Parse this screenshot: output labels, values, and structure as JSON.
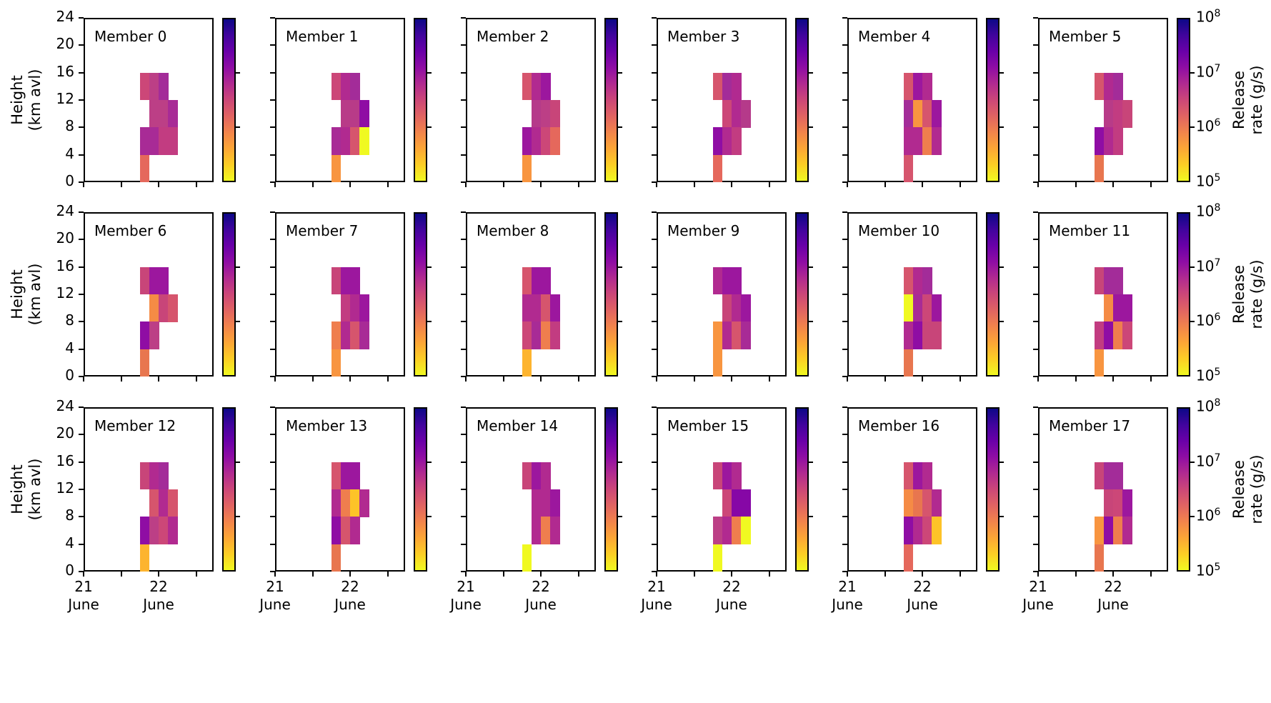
{
  "figure": {
    "kind": "ensemble release-rate inversion heatmaps",
    "rows": 3,
    "cols": 6
  },
  "chart_data": {
    "type": "heatmap",
    "grid": {
      "rows": 3,
      "cols": 6
    },
    "ylabel_lines": [
      "Height",
      "(km avl)"
    ],
    "y_tick_labels": [
      "0",
      "4",
      "8",
      "12",
      "16",
      "20",
      "24"
    ],
    "y_range_km": [
      0,
      24
    ],
    "x_tick_labels": [
      [
        "21",
        "June"
      ],
      [
        "22",
        "June"
      ]
    ],
    "x_range": [
      "21 June 00:00",
      "22 June ~18:00"
    ],
    "time_slots": [
      "21 June 18:00-21:00",
      "21 June 21:00-24:00",
      "22 June 00:00-03:00",
      "22 June 03:00-06:00"
    ],
    "colorbar": {
      "label_lines": [
        "Release",
        "rate (g/s)"
      ],
      "tick_labels": [
        "10^5",
        "10^6",
        "10^7",
        "10^8"
      ],
      "scale": "log",
      "colormap": "plasma reversed (yellow=1e5 bottom, dark indigo=1e8 top)",
      "gradient_stops_top_to_bottom": [
        "#0d0887",
        "#41049d",
        "#6a00a8",
        "#8f0da4",
        "#b12a90",
        "#cc4778",
        "#e16462",
        "#f2844b",
        "#fca636",
        "#fcce25",
        "#f0f921"
      ]
    },
    "color_to_value_gs_estimate": {
      "#f0f921": "1.0e5",
      "#fdc328": "1.9e5",
      "#fdb42f": "2.7e5",
      "#f89540": "4.4e5",
      "#f58b45": "5.2e5",
      "#ef7e4e": "6.6e5",
      "#e8764f": "7.8e5",
      "#e5685c": "1.0e6",
      "#d6556d": "1.4e6",
      "#cc4778": "2.2e6",
      "#c84579": "2.6e6",
      "#c23c81": "3.2e6",
      "#bc3f86": "3.8e6",
      "#b83b88": "4.3e6",
      "#b53a8a": "4.7e6",
      "#b12a90": "6.0e6",
      "#a82b96": "7.5e6",
      "#a32c99": "8.5e6",
      "#9c179e": "1.2e7",
      "#8f0da4": "1.8e7",
      "#8607a6": "2.4e7"
    },
    "members": [
      {
        "label": "Member 0",
        "bands": [
          {
            "km": [
              12,
              16
            ],
            "start_slot": 0,
            "colors": [
              "#cc4778",
              "#bc3f86",
              "#a32c99"
            ]
          },
          {
            "km": [
              8,
              12
            ],
            "start_slot": 1,
            "colors": [
              "#bc3f86",
              "#bc3f86",
              "#a82b96"
            ]
          },
          {
            "km": [
              4,
              8
            ],
            "start_slot": 0,
            "colors": [
              "#a82b96",
              "#a82b96",
              "#c23c81",
              "#c23c81"
            ]
          },
          {
            "km": [
              0,
              4
            ],
            "start_slot": 0,
            "colors": [
              "#e5685c"
            ]
          }
        ]
      },
      {
        "label": "Member 1",
        "bands": [
          {
            "km": [
              12,
              16
            ],
            "start_slot": 0,
            "colors": [
              "#cc4778",
              "#b12a90",
              "#a32c99"
            ]
          },
          {
            "km": [
              8,
              12
            ],
            "start_slot": 1,
            "colors": [
              "#b83b88",
              "#b83b88",
              "#8f0da4"
            ]
          },
          {
            "km": [
              4,
              8
            ],
            "start_slot": 0,
            "colors": [
              "#a82b96",
              "#b12a90",
              "#d6556d",
              "#f0f921"
            ]
          },
          {
            "km": [
              0,
              4
            ],
            "start_slot": 0,
            "colors": [
              "#f89540"
            ]
          }
        ]
      },
      {
        "label": "Member 2",
        "bands": [
          {
            "km": [
              12,
              16
            ],
            "start_slot": 0,
            "colors": [
              "#d6556d",
              "#b12a90",
              "#9c179e"
            ]
          },
          {
            "km": [
              8,
              12
            ],
            "start_slot": 1,
            "colors": [
              "#b53a8a",
              "#bc3f86",
              "#c84579"
            ]
          },
          {
            "km": [
              4,
              8
            ],
            "start_slot": 0,
            "colors": [
              "#9c179e",
              "#b12a90",
              "#cc4778",
              "#e5685c"
            ]
          },
          {
            "km": [
              0,
              4
            ],
            "start_slot": 0,
            "colors": [
              "#f89540"
            ]
          }
        ]
      },
      {
        "label": "Member 3",
        "bands": [
          {
            "km": [
              12,
              16
            ],
            "start_slot": 0,
            "colors": [
              "#d6556d",
              "#a32c99",
              "#b12a90"
            ]
          },
          {
            "km": [
              8,
              12
            ],
            "start_slot": 1,
            "colors": [
              "#cc4778",
              "#b12a90",
              "#b53a8a"
            ]
          },
          {
            "km": [
              4,
              8
            ],
            "start_slot": 0,
            "colors": [
              "#8f0da4",
              "#b12a90",
              "#c23c81"
            ]
          },
          {
            "km": [
              0,
              4
            ],
            "start_slot": 0,
            "colors": [
              "#e5685c"
            ]
          }
        ]
      },
      {
        "label": "Member 4",
        "bands": [
          {
            "km": [
              12,
              16
            ],
            "start_slot": 0,
            "colors": [
              "#d6556d",
              "#9c179e",
              "#b12a90"
            ]
          },
          {
            "km": [
              8,
              12
            ],
            "start_slot": 0,
            "colors": [
              "#a32c99",
              "#f89540",
              "#d6556d",
              "#9c179e"
            ]
          },
          {
            "km": [
              4,
              8
            ],
            "start_slot": 0,
            "colors": [
              "#b12a90",
              "#b12a90",
              "#ef7e4e",
              "#b12a90"
            ]
          },
          {
            "km": [
              0,
              4
            ],
            "start_slot": 0,
            "colors": [
              "#d6556d"
            ]
          }
        ]
      },
      {
        "label": "Member 5",
        "bands": [
          {
            "km": [
              12,
              16
            ],
            "start_slot": 0,
            "colors": [
              "#d6556d",
              "#b12a90",
              "#a32c99"
            ]
          },
          {
            "km": [
              8,
              12
            ],
            "start_slot": 1,
            "colors": [
              "#b83b88",
              "#c23c81",
              "#c84579"
            ]
          },
          {
            "km": [
              4,
              8
            ],
            "start_slot": 0,
            "colors": [
              "#8f0da4",
              "#b12a90",
              "#c23c81"
            ]
          },
          {
            "km": [
              0,
              4
            ],
            "start_slot": 0,
            "colors": [
              "#e8764f"
            ]
          }
        ]
      },
      {
        "label": "Member 6",
        "bands": [
          {
            "km": [
              12,
              16
            ],
            "start_slot": 0,
            "colors": [
              "#c84579",
              "#9c179e",
              "#9c179e"
            ]
          },
          {
            "km": [
              8,
              12
            ],
            "start_slot": 1,
            "colors": [
              "#f58b45",
              "#c84579",
              "#d6556d"
            ]
          },
          {
            "km": [
              4,
              8
            ],
            "start_slot": 0,
            "colors": [
              "#8f0da4",
              "#bc3f86"
            ]
          },
          {
            "km": [
              0,
              4
            ],
            "start_slot": 0,
            "colors": [
              "#e8764f"
            ]
          }
        ]
      },
      {
        "label": "Member 7",
        "bands": [
          {
            "km": [
              12,
              16
            ],
            "start_slot": 0,
            "colors": [
              "#c84579",
              "#9c179e",
              "#9c179e"
            ]
          },
          {
            "km": [
              8,
              12
            ],
            "start_slot": 1,
            "colors": [
              "#c23c81",
              "#b12a90",
              "#9c179e"
            ]
          },
          {
            "km": [
              4,
              8
            ],
            "start_slot": 0,
            "colors": [
              "#ef7e4e",
              "#b12a90",
              "#d6556d",
              "#a82b96"
            ]
          },
          {
            "km": [
              0,
              4
            ],
            "start_slot": 0,
            "colors": [
              "#f89540"
            ]
          }
        ]
      },
      {
        "label": "Member 8",
        "bands": [
          {
            "km": [
              12,
              16
            ],
            "start_slot": 0,
            "colors": [
              "#d6556d",
              "#9c179e",
              "#9c179e"
            ]
          },
          {
            "km": [
              8,
              12
            ],
            "start_slot": 0,
            "colors": [
              "#b12a90",
              "#b12a90",
              "#d6556d",
              "#9c179e"
            ]
          },
          {
            "km": [
              4,
              8
            ],
            "start_slot": 0,
            "colors": [
              "#cc4778",
              "#a82b96",
              "#ef7e4e",
              "#c23c81"
            ]
          },
          {
            "km": [
              0,
              4
            ],
            "start_slot": 0,
            "colors": [
              "#fdb42f"
            ]
          }
        ]
      },
      {
        "label": "Member 9",
        "bands": [
          {
            "km": [
              12,
              16
            ],
            "start_slot": 0,
            "colors": [
              "#b12a90",
              "#9c179e",
              "#9c179e"
            ]
          },
          {
            "km": [
              8,
              12
            ],
            "start_slot": 1,
            "colors": [
              "#c84579",
              "#b12a90",
              "#9c179e"
            ]
          },
          {
            "km": [
              4,
              8
            ],
            "start_slot": 0,
            "colors": [
              "#f89540",
              "#b12a90",
              "#d6556d",
              "#a82b96"
            ]
          },
          {
            "km": [
              0,
              4
            ],
            "start_slot": 0,
            "colors": [
              "#f89540"
            ]
          }
        ]
      },
      {
        "label": "Member 10",
        "bands": [
          {
            "km": [
              12,
              16
            ],
            "start_slot": 0,
            "colors": [
              "#d6556d",
              "#b12a90",
              "#a32c99"
            ]
          },
          {
            "km": [
              8,
              12
            ],
            "start_slot": 0,
            "colors": [
              "#f0f921",
              "#a82b96",
              "#cc4778",
              "#9c179e"
            ]
          },
          {
            "km": [
              4,
              8
            ],
            "start_slot": 0,
            "colors": [
              "#b12a90",
              "#8f0da4",
              "#c84579",
              "#c84579"
            ]
          },
          {
            "km": [
              0,
              4
            ],
            "start_slot": 0,
            "colors": [
              "#e8764f"
            ]
          }
        ]
      },
      {
        "label": "Member 11",
        "bands": [
          {
            "km": [
              12,
              16
            ],
            "start_slot": 0,
            "colors": [
              "#c84579",
              "#a32c99",
              "#a32c99"
            ]
          },
          {
            "km": [
              8,
              12
            ],
            "start_slot": 1,
            "colors": [
              "#f58b45",
              "#9c179e",
              "#9c179e"
            ]
          },
          {
            "km": [
              4,
              8
            ],
            "start_slot": 0,
            "colors": [
              "#c23c81",
              "#8f0da4",
              "#ef7e4e",
              "#cc4778"
            ]
          },
          {
            "km": [
              0,
              4
            ],
            "start_slot": 0,
            "colors": [
              "#f89540"
            ]
          }
        ]
      },
      {
        "label": "Member 12",
        "bands": [
          {
            "km": [
              12,
              16
            ],
            "start_slot": 0,
            "colors": [
              "#c84579",
              "#b12a90",
              "#a32c99"
            ]
          },
          {
            "km": [
              8,
              12
            ],
            "start_slot": 1,
            "colors": [
              "#d6556d",
              "#b12a90",
              "#d6556d"
            ]
          },
          {
            "km": [
              4,
              8
            ],
            "start_slot": 0,
            "colors": [
              "#8f0da4",
              "#bc3f86",
              "#cc4778",
              "#b12a90"
            ]
          },
          {
            "km": [
              0,
              4
            ],
            "start_slot": 0,
            "colors": [
              "#fdb42f"
            ]
          }
        ]
      },
      {
        "label": "Member 13",
        "bands": [
          {
            "km": [
              12,
              16
            ],
            "start_slot": 0,
            "colors": [
              "#d6556d",
              "#9c179e",
              "#9c179e"
            ]
          },
          {
            "km": [
              8,
              12
            ],
            "start_slot": 0,
            "colors": [
              "#b12a90",
              "#ef7e4e",
              "#fdc328",
              "#b12a90"
            ]
          },
          {
            "km": [
              4,
              8
            ],
            "start_slot": 0,
            "colors": [
              "#8f0da4",
              "#d6556d",
              "#b12a90"
            ]
          },
          {
            "km": [
              0,
              4
            ],
            "start_slot": 0,
            "colors": [
              "#e8764f"
            ]
          }
        ]
      },
      {
        "label": "Member 14",
        "bands": [
          {
            "km": [
              12,
              16
            ],
            "start_slot": 0,
            "colors": [
              "#c84579",
              "#9c179e",
              "#b12a90"
            ]
          },
          {
            "km": [
              8,
              12
            ],
            "start_slot": 1,
            "colors": [
              "#b12a90",
              "#b12a90",
              "#9c179e"
            ]
          },
          {
            "km": [
              4,
              8
            ],
            "start_slot": 1,
            "colors": [
              "#b12a90",
              "#ef7e4e",
              "#b12a90"
            ]
          },
          {
            "km": [
              0,
              4
            ],
            "start_slot": 0,
            "colors": [
              "#f0f921"
            ]
          }
        ]
      },
      {
        "label": "Member 15",
        "bands": [
          {
            "km": [
              12,
              16
            ],
            "start_slot": 0,
            "colors": [
              "#c84579",
              "#9c179e",
              "#b12a90"
            ]
          },
          {
            "km": [
              8,
              12
            ],
            "start_slot": 1,
            "colors": [
              "#cc4778",
              "#8607a6",
              "#8607a6"
            ]
          },
          {
            "km": [
              4,
              8
            ],
            "start_slot": 0,
            "colors": [
              "#bc3f86",
              "#b12a90",
              "#ef7e4e",
              "#f0f921"
            ]
          },
          {
            "km": [
              0,
              4
            ],
            "start_slot": 0,
            "colors": [
              "#f0f921"
            ]
          }
        ]
      },
      {
        "label": "Member 16",
        "bands": [
          {
            "km": [
              12,
              16
            ],
            "start_slot": 0,
            "colors": [
              "#d6556d",
              "#9c179e",
              "#b12a90"
            ]
          },
          {
            "km": [
              8,
              12
            ],
            "start_slot": 0,
            "colors": [
              "#f58b45",
              "#e8764f",
              "#d6556d",
              "#b12a90"
            ]
          },
          {
            "km": [
              4,
              8
            ],
            "start_slot": 0,
            "colors": [
              "#8f0da4",
              "#b12a90",
              "#cc4778",
              "#fdc328"
            ]
          },
          {
            "km": [
              0,
              4
            ],
            "start_slot": 0,
            "colors": [
              "#e5685c"
            ]
          }
        ]
      },
      {
        "label": "Member 17",
        "bands": [
          {
            "km": [
              12,
              16
            ],
            "start_slot": 0,
            "colors": [
              "#c84579",
              "#a32c99",
              "#a32c99"
            ]
          },
          {
            "km": [
              8,
              12
            ],
            "start_slot": 1,
            "colors": [
              "#c84579",
              "#cc4778",
              "#9c179e"
            ]
          },
          {
            "km": [
              4,
              8
            ],
            "start_slot": 0,
            "colors": [
              "#f89540",
              "#8f0da4",
              "#ef7e4e",
              "#b12a90"
            ]
          },
          {
            "km": [
              0,
              4
            ],
            "start_slot": 0,
            "colors": [
              "#e8764f"
            ]
          }
        ]
      }
    ]
  }
}
